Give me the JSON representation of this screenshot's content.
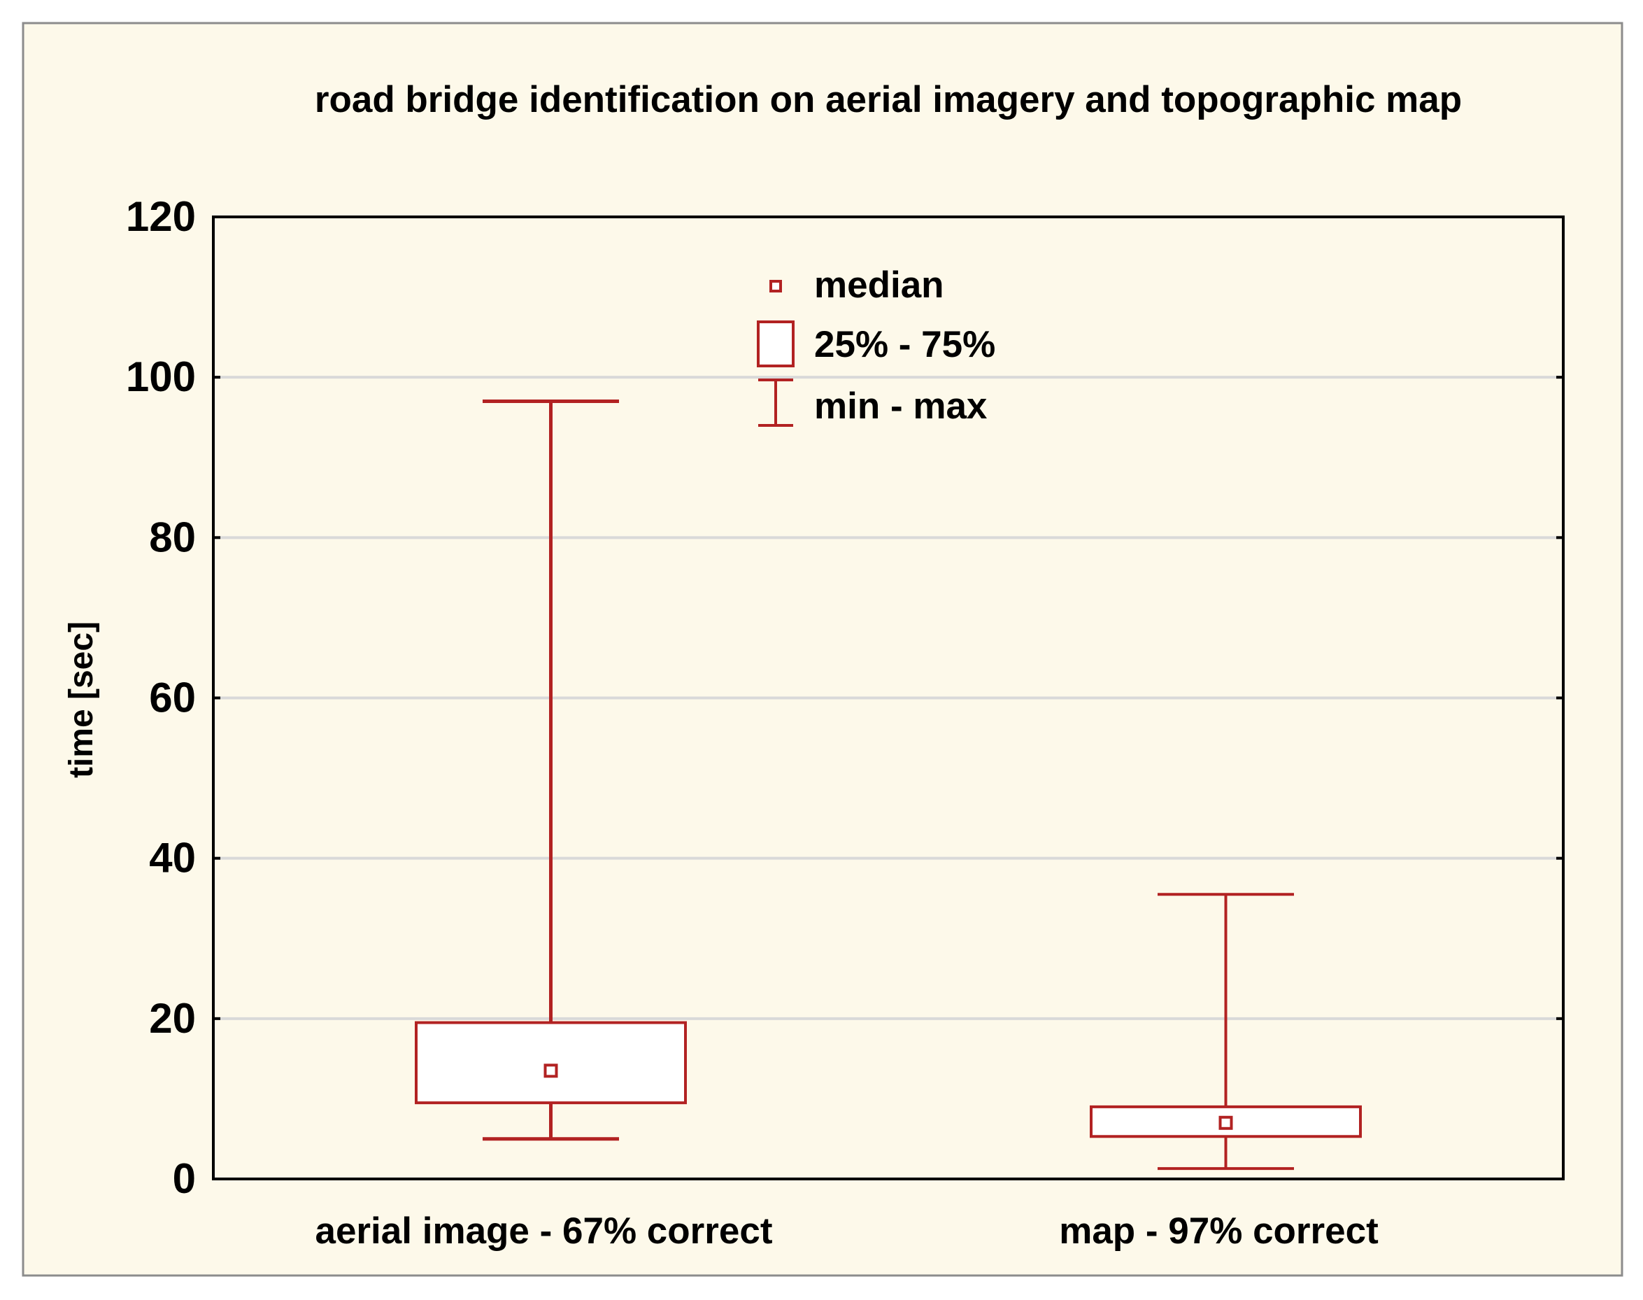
{
  "chart_data": {
    "type": "box",
    "title": "road bridge identification on aerial imagery and topographic map",
    "ylabel": "time [sec]",
    "xlabel": "",
    "ylim": [
      0,
      120
    ],
    "yticks": [
      0,
      20,
      40,
      60,
      80,
      100,
      120
    ],
    "grid": true,
    "legend_position": "top-center",
    "legend": [
      {
        "name": "median",
        "symbol": "square"
      },
      {
        "name": "25% - 75%",
        "symbol": "box"
      },
      {
        "name": "min - max",
        "symbol": "whisker"
      }
    ],
    "categories": [
      "aerial image - 67% correct",
      "map - 97% correct"
    ],
    "boxes": [
      {
        "category": "aerial image - 67% correct",
        "min": 5,
        "q1": 9.5,
        "median": 13.5,
        "q3": 19.5,
        "max": 97
      },
      {
        "category": "map - 97% correct",
        "min": 1.3,
        "q1": 5.3,
        "median": 7,
        "q3": 9,
        "max": 35.5
      }
    ]
  },
  "colors": {
    "series": "#b22222",
    "panel_background": "#fdf9ea",
    "plot_background": "#ffffff",
    "grid": "#d9d9d9"
  }
}
